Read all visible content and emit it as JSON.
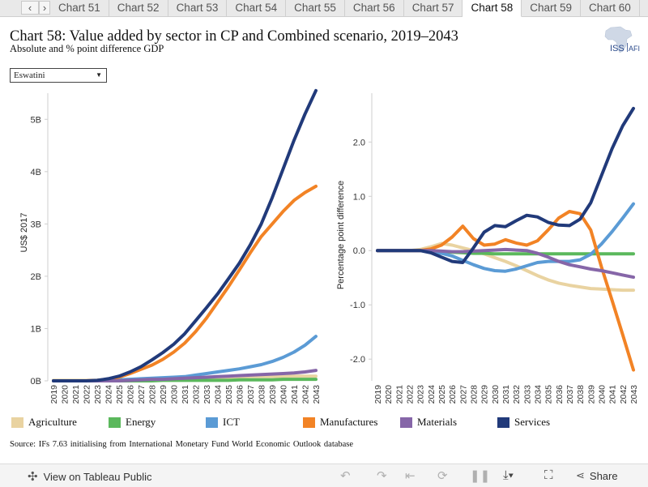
{
  "tabbar": {
    "prev_icon": "chevron-left-icon",
    "next_icon": "chevron-right-icon",
    "tabs": [
      "Chart 51",
      "Chart 52",
      "Chart 53",
      "Chart 54",
      "Chart 55",
      "Chart 56",
      "Chart 57",
      "Chart 58",
      "Chart 59",
      "Chart 60"
    ],
    "active_index": 7
  },
  "header": {
    "title": "Chart 58: Value added by sector in CP and Combined scenario, 2019–2043",
    "subtitle": "Absolute and % point difference GDP",
    "logo_text": "ISS",
    "logo_text2": "AFI"
  },
  "filter": {
    "selected": "Eswatini"
  },
  "colors": {
    "Agriculture": "#e9d3a1",
    "Energy": "#5bb85c",
    "ICT": "#5b9bd5",
    "Manufactures": "#f28325",
    "Materials": "#8666a8",
    "Services": "#213a7a"
  },
  "chart_data": [
    {
      "type": "line",
      "title": "",
      "xlabel": "",
      "ylabel": "US$ 2017",
      "ylim": [
        0,
        5.5
      ],
      "yticks": [
        0,
        1,
        2,
        3,
        4,
        5
      ],
      "ytick_labels": [
        "0B",
        "1B",
        "2B",
        "3B",
        "4B",
        "5B"
      ],
      "x": [
        "2019",
        "2020",
        "2021",
        "2022",
        "2023",
        "2024",
        "2025",
        "2026",
        "2027",
        "2028",
        "2029",
        "2030",
        "2031",
        "2032",
        "2033",
        "2034",
        "2035",
        "2036",
        "2037",
        "2038",
        "2039",
        "2040",
        "2041",
        "2042",
        "2043"
      ],
      "series": [
        {
          "name": "Agriculture",
          "values": [
            0.01,
            0.01,
            0.01,
            0.01,
            0.01,
            0.02,
            0.02,
            0.03,
            0.03,
            0.04,
            0.05,
            0.05,
            0.06,
            0.06,
            0.06,
            0.07,
            0.07,
            0.07,
            0.08,
            0.08,
            0.08,
            0.08,
            0.09,
            0.09,
            0.09
          ]
        },
        {
          "name": "Energy",
          "values": [
            0.0,
            0.0,
            0.0,
            0.0,
            0.0,
            0.0,
            0.0,
            0.0,
            0.0,
            0.0,
            0.01,
            0.01,
            0.01,
            0.01,
            0.01,
            0.01,
            0.01,
            0.02,
            0.02,
            0.02,
            0.02,
            0.03,
            0.03,
            0.03,
            0.03
          ]
        },
        {
          "name": "ICT",
          "values": [
            0.0,
            0.0,
            0.0,
            0.0,
            0.0,
            0.01,
            0.02,
            0.03,
            0.04,
            0.05,
            0.06,
            0.07,
            0.08,
            0.11,
            0.14,
            0.17,
            0.2,
            0.23,
            0.27,
            0.31,
            0.37,
            0.45,
            0.55,
            0.68,
            0.85
          ]
        },
        {
          "name": "Manufactures",
          "values": [
            0.0,
            0.0,
            0.0,
            0.0,
            0.01,
            0.03,
            0.07,
            0.14,
            0.22,
            0.3,
            0.41,
            0.55,
            0.72,
            0.94,
            1.2,
            1.5,
            1.8,
            2.12,
            2.45,
            2.76,
            3.0,
            3.24,
            3.45,
            3.6,
            3.72
          ]
        },
        {
          "name": "Materials",
          "values": [
            0.0,
            0.0,
            0.0,
            0.0,
            0.0,
            0.0,
            0.0,
            0.01,
            0.02,
            0.03,
            0.03,
            0.04,
            0.05,
            0.06,
            0.07,
            0.08,
            0.09,
            0.1,
            0.11,
            0.12,
            0.13,
            0.14,
            0.15,
            0.17,
            0.2
          ]
        },
        {
          "name": "Services",
          "values": [
            0.0,
            0.0,
            0.0,
            0.0,
            0.01,
            0.04,
            0.09,
            0.17,
            0.27,
            0.4,
            0.54,
            0.7,
            0.9,
            1.15,
            1.4,
            1.66,
            1.95,
            2.25,
            2.6,
            3.0,
            3.5,
            4.05,
            4.6,
            5.1,
            5.55
          ]
        }
      ],
      "grid": false,
      "legend": "bottom"
    },
    {
      "type": "line",
      "title": "",
      "xlabel": "",
      "ylabel": "Percentage point difference",
      "ylim": [
        -2.4,
        2.9
      ],
      "yticks": [
        -2.0,
        -1.0,
        0.0,
        1.0,
        2.0
      ],
      "ytick_labels": [
        "-2.0",
        "-1.0",
        "0.0",
        "1.0",
        "2.0"
      ],
      "x": [
        "2019",
        "2020",
        "2021",
        "2022",
        "2023",
        "2024",
        "2025",
        "2026",
        "2027",
        "2028",
        "2029",
        "2030",
        "2031",
        "2032",
        "2033",
        "2034",
        "2035",
        "2036",
        "2037",
        "2038",
        "2039",
        "2040",
        "2041",
        "2042",
        "2043"
      ],
      "series": [
        {
          "name": "Agriculture",
          "values": [
            0.0,
            0.0,
            0.0,
            0.0,
            0.02,
            0.07,
            0.13,
            0.1,
            0.05,
            0.0,
            -0.06,
            -0.13,
            -0.2,
            -0.28,
            -0.37,
            -0.46,
            -0.54,
            -0.6,
            -0.64,
            -0.67,
            -0.7,
            -0.71,
            -0.72,
            -0.73,
            -0.73
          ]
        },
        {
          "name": "Energy",
          "values": [
            0.0,
            0.0,
            0.0,
            0.0,
            0.0,
            -0.01,
            -0.02,
            -0.03,
            -0.04,
            -0.05,
            -0.05,
            -0.06,
            -0.06,
            -0.06,
            -0.06,
            -0.06,
            -0.06,
            -0.06,
            -0.06,
            -0.06,
            -0.06,
            -0.06,
            -0.06,
            -0.06,
            -0.06
          ]
        },
        {
          "name": "ICT",
          "values": [
            0.0,
            0.0,
            0.0,
            0.0,
            0.0,
            -0.02,
            -0.05,
            -0.1,
            -0.18,
            -0.26,
            -0.33,
            -0.37,
            -0.38,
            -0.34,
            -0.28,
            -0.22,
            -0.2,
            -0.2,
            -0.2,
            -0.17,
            -0.07,
            0.12,
            0.35,
            0.6,
            0.86
          ]
        },
        {
          "name": "Manufactures",
          "values": [
            0.0,
            0.0,
            0.0,
            0.0,
            0.0,
            0.03,
            0.1,
            0.25,
            0.45,
            0.22,
            0.1,
            0.12,
            0.2,
            0.14,
            0.1,
            0.18,
            0.38,
            0.6,
            0.72,
            0.68,
            0.38,
            -0.3,
            -0.92,
            -1.55,
            -2.2
          ]
        },
        {
          "name": "Materials",
          "values": [
            0.0,
            0.0,
            0.0,
            0.0,
            0.0,
            0.0,
            -0.01,
            -0.02,
            -0.02,
            -0.01,
            0.0,
            0.01,
            0.02,
            0.01,
            0.0,
            -0.05,
            -0.12,
            -0.2,
            -0.26,
            -0.3,
            -0.34,
            -0.37,
            -0.41,
            -0.45,
            -0.49
          ]
        },
        {
          "name": "Services",
          "values": [
            0.0,
            0.0,
            0.0,
            0.0,
            0.0,
            -0.04,
            -0.12,
            -0.2,
            -0.22,
            0.05,
            0.34,
            0.46,
            0.44,
            0.55,
            0.65,
            0.62,
            0.52,
            0.47,
            0.46,
            0.58,
            0.88,
            1.38,
            1.88,
            2.3,
            2.62
          ]
        }
      ],
      "grid": false,
      "legend": "bottom"
    }
  ],
  "legend": [
    "Agriculture",
    "Energy",
    "ICT",
    "Manufactures",
    "Materials",
    "Services"
  ],
  "footer": {
    "source": "Source: IFs 7.63 initialising from International Monetary Fund World Economic Outlook database"
  },
  "toolbar": {
    "view_label": "View on Tableau Public",
    "share_label": "Share"
  }
}
